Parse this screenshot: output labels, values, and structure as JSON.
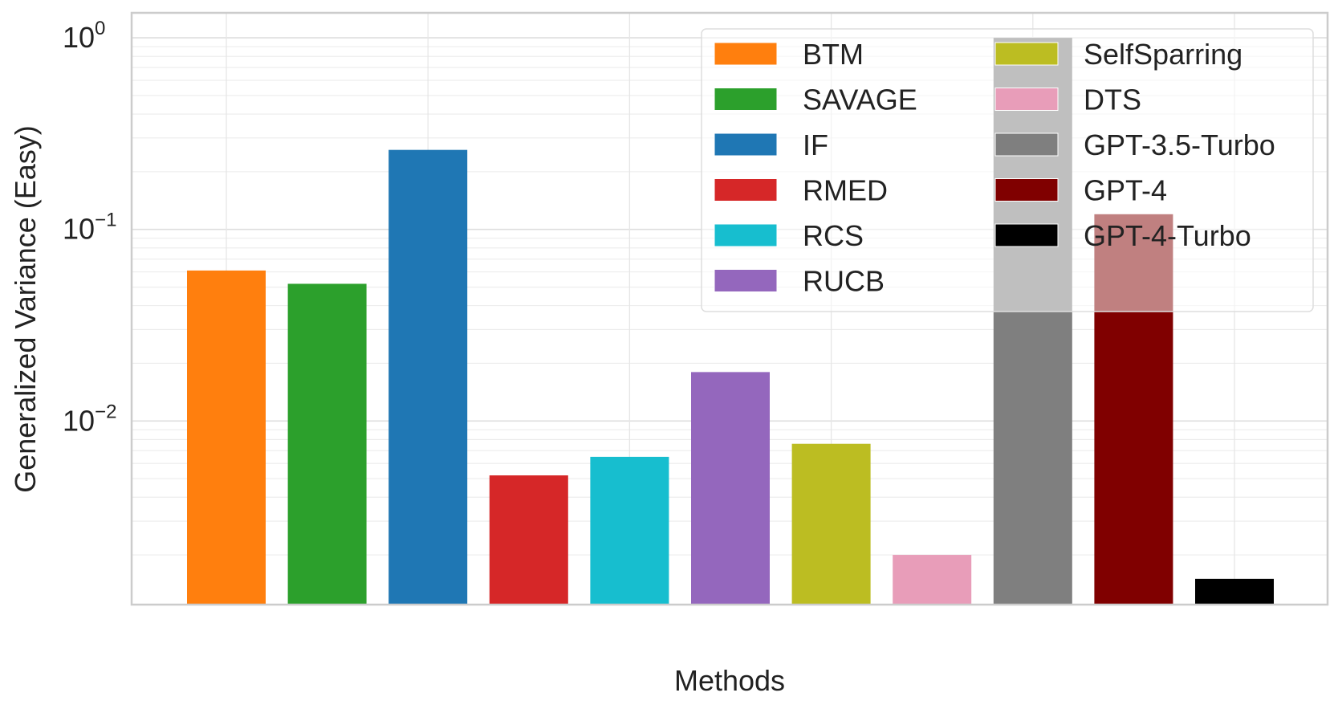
{
  "chart_data": {
    "type": "bar",
    "xlabel": "Methods",
    "ylabel": "Generalized Variance (Easy)",
    "yscale": "log",
    "ylim": [
      0.0011,
      1.35
    ],
    "ytick_labels": [
      {
        "base": "10",
        "exp": "0",
        "value": 1
      },
      {
        "base": "10",
        "exp": "−1",
        "value": 0.1
      },
      {
        "base": "10",
        "exp": "−2",
        "value": 0.01
      }
    ],
    "grid": true,
    "legend_position": "top-right",
    "legend_columns": 2,
    "series": [
      {
        "name": "BTM",
        "value": 0.061,
        "color": "#ff7f0e"
      },
      {
        "name": "SAVAGE",
        "value": 0.052,
        "color": "#2ca02c"
      },
      {
        "name": "IF",
        "value": 0.26,
        "color": "#1f77b4"
      },
      {
        "name": "RMED",
        "value": 0.0052,
        "color": "#d62728"
      },
      {
        "name": "RCS",
        "value": 0.0065,
        "color": "#17becf"
      },
      {
        "name": "RUCB",
        "value": 0.018,
        "color": "#9467bd"
      },
      {
        "name": "SelfSparring",
        "value": 0.0076,
        "color": "#bcbd22"
      },
      {
        "name": "DTS",
        "value": 0.002,
        "color": "#e89db9"
      },
      {
        "name": "GPT-3.5-Turbo",
        "value": 1.0,
        "color": "#7f7f7f"
      },
      {
        "name": "GPT-4",
        "value": 0.12,
        "color": "#800000"
      },
      {
        "name": "GPT-4-Turbo",
        "value": 0.0015,
        "color": "#000000"
      }
    ]
  }
}
